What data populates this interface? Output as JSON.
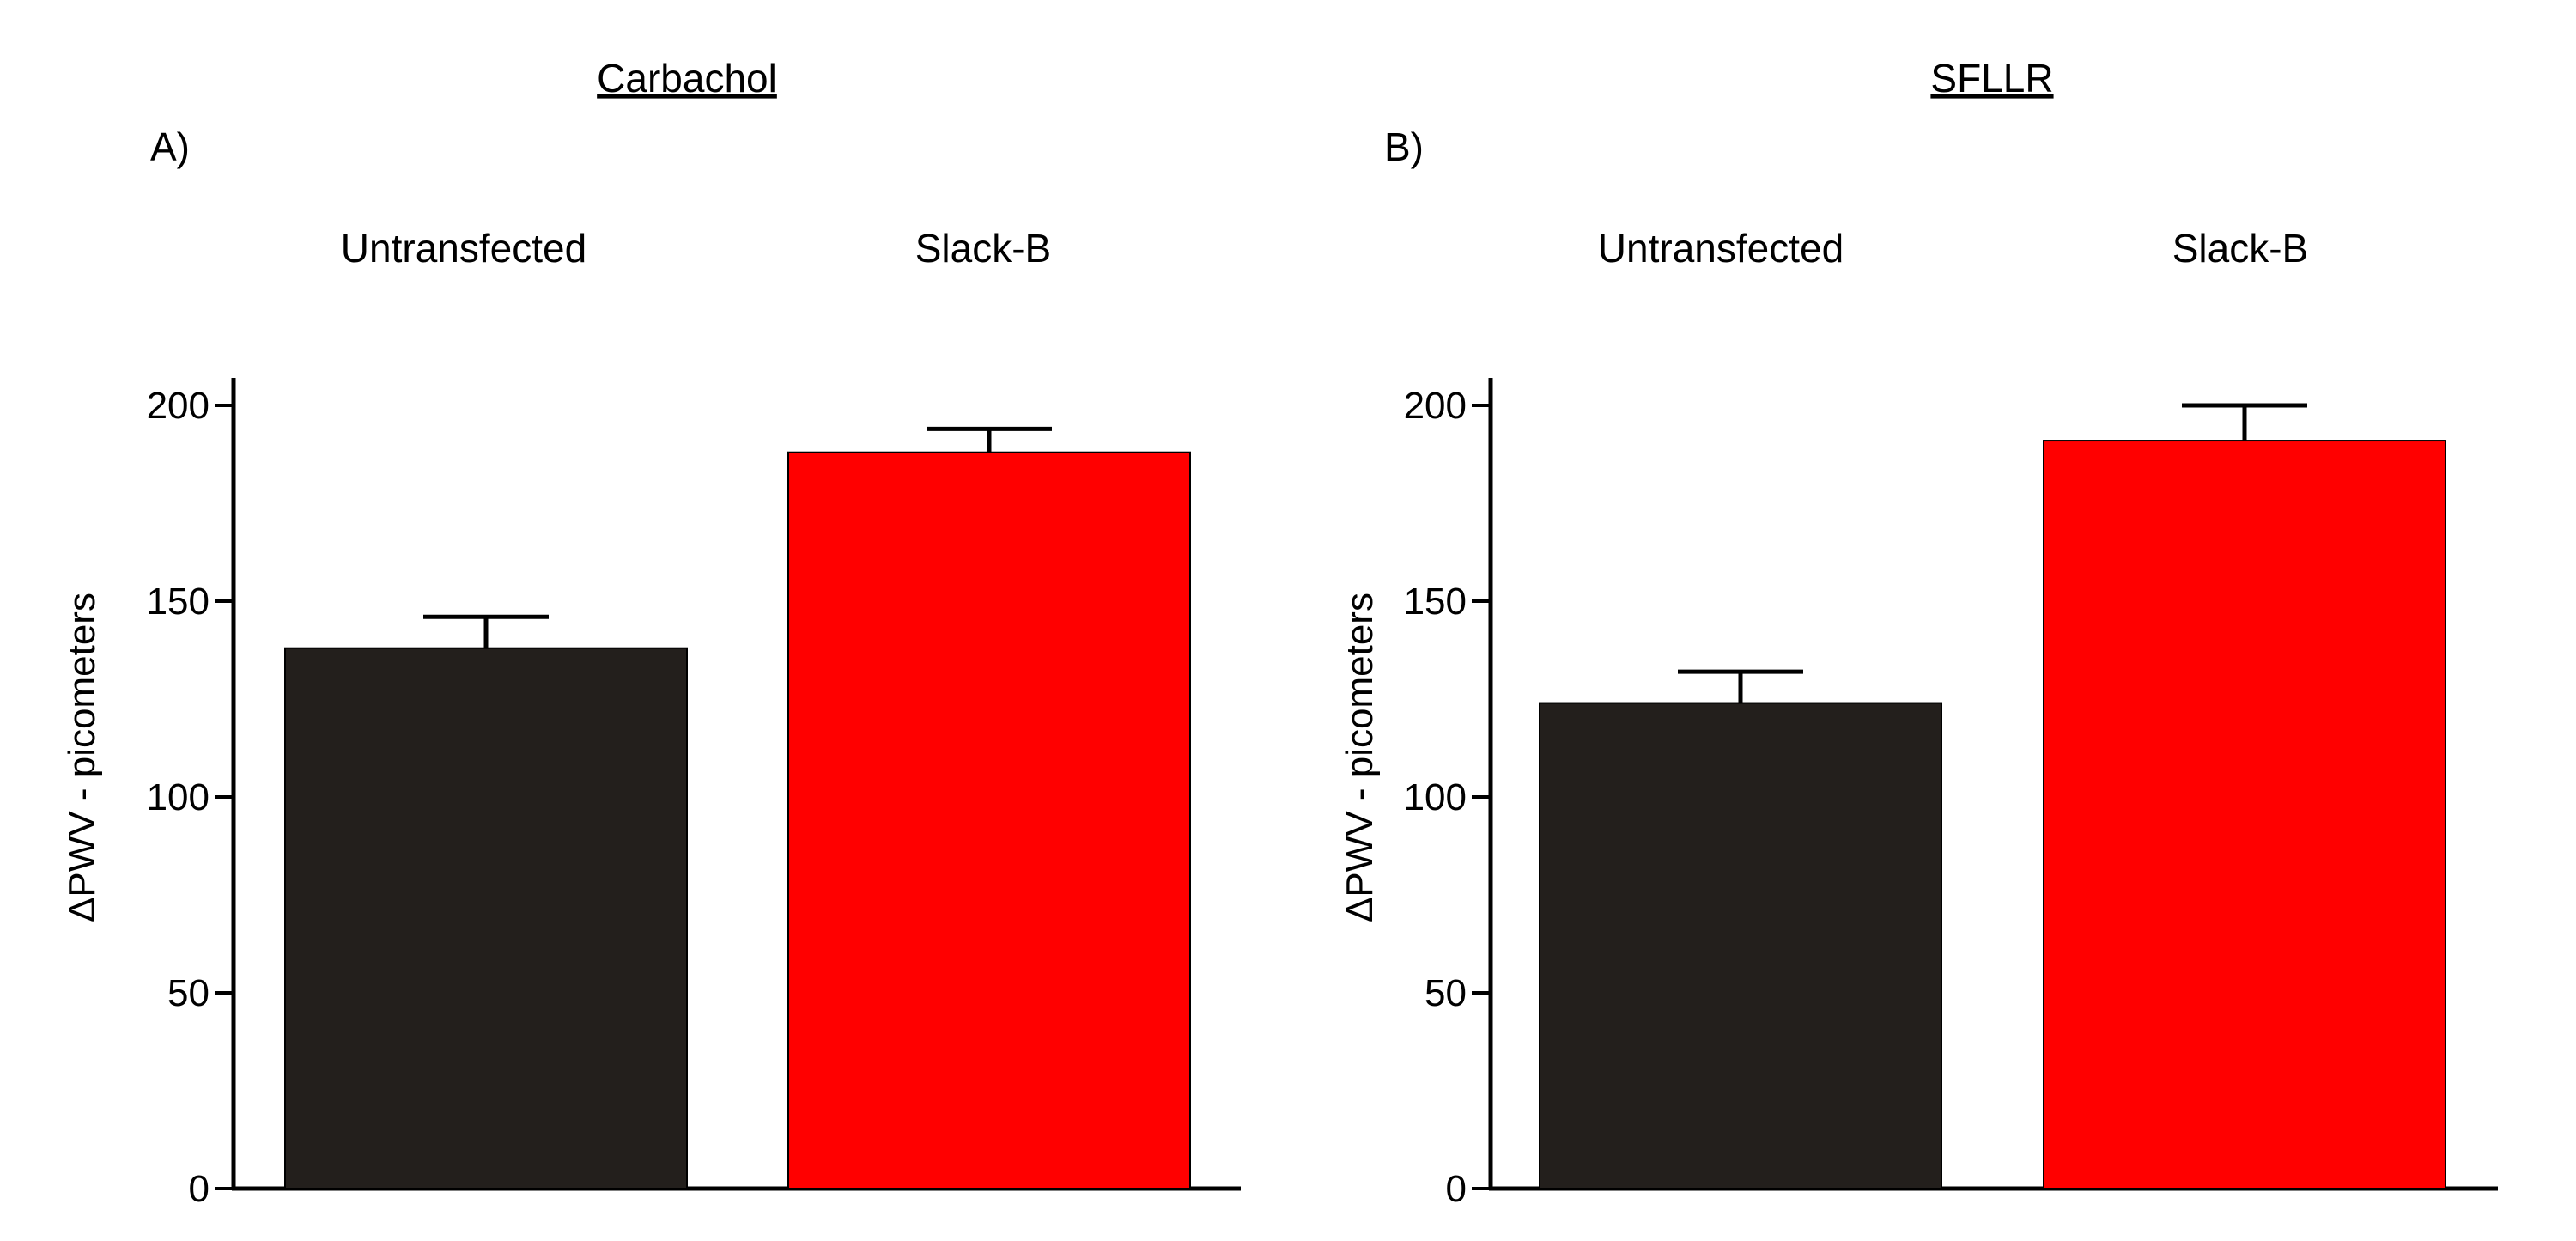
{
  "chart_data": [
    {
      "type": "bar",
      "panel_label": "A)",
      "title": "Carbachol",
      "categories": [
        "Untransfected",
        "Slack-B"
      ],
      "values": [
        138,
        188
      ],
      "errors": [
        8,
        6
      ],
      "colors": [
        "#231f1c",
        "#ff0000"
      ],
      "xlabel": "",
      "ylabel": "ΔPWV - picometers",
      "ylim": [
        0,
        200
      ],
      "yticks": [
        0,
        50,
        100,
        150,
        200
      ],
      "grid": false
    },
    {
      "type": "bar",
      "panel_label": "B)",
      "title": "SFLLR",
      "categories": [
        "Untransfected",
        "Slack-B"
      ],
      "values": [
        124,
        191
      ],
      "errors": [
        8,
        9
      ],
      "colors": [
        "#231f1c",
        "#ff0000"
      ],
      "xlabel": "",
      "ylabel": "ΔPWV - picometers",
      "ylim": [
        0,
        200
      ],
      "yticks": [
        0,
        50,
        100,
        150,
        200
      ],
      "grid": false
    }
  ]
}
